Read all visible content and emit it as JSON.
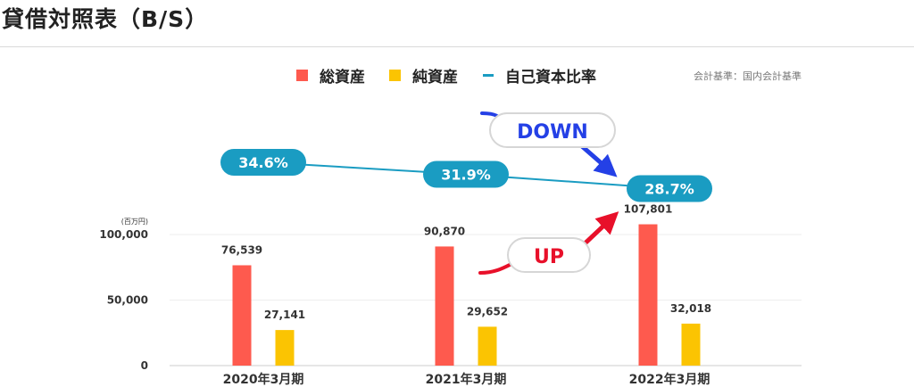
{
  "page": {
    "title": "貸借対照表（B/S）"
  },
  "chart_data": {
    "type": "bar",
    "categories": [
      "2020年3月期",
      "2021年3月期",
      "2022年3月期"
    ],
    "series": [
      {
        "name": "総資産",
        "type": "bar",
        "color": "#fe5a4e",
        "values": [
          76539,
          90870,
          107801
        ],
        "labels": [
          "76,539",
          "90,870",
          "107,801"
        ]
      },
      {
        "name": "純資産",
        "type": "bar",
        "color": "#fbc402",
        "values": [
          27141,
          29652,
          32018
        ],
        "labels": [
          "27,141",
          "29,652",
          "32,018"
        ]
      },
      {
        "name": "自己資本比率",
        "type": "line",
        "color": "#1a9cc2",
        "values": [
          34.6,
          31.9,
          28.7
        ],
        "labels": [
          "34.6%",
          "31.9%",
          "28.7%"
        ]
      }
    ],
    "ylim": [
      0,
      100000
    ],
    "yticks": [
      {
        "value": 0,
        "label": "0"
      },
      {
        "value": 50000,
        "label": "50,000"
      },
      {
        "value": 100000,
        "label": "100,000"
      }
    ],
    "unit_label": "(百万円)",
    "note": "会計基準：国内会計基準",
    "grid": true,
    "legend": "top",
    "annotations": [
      {
        "text": "DOWN",
        "color": "#2440e6"
      },
      {
        "text": "UP",
        "color": "#e8102a"
      }
    ]
  }
}
